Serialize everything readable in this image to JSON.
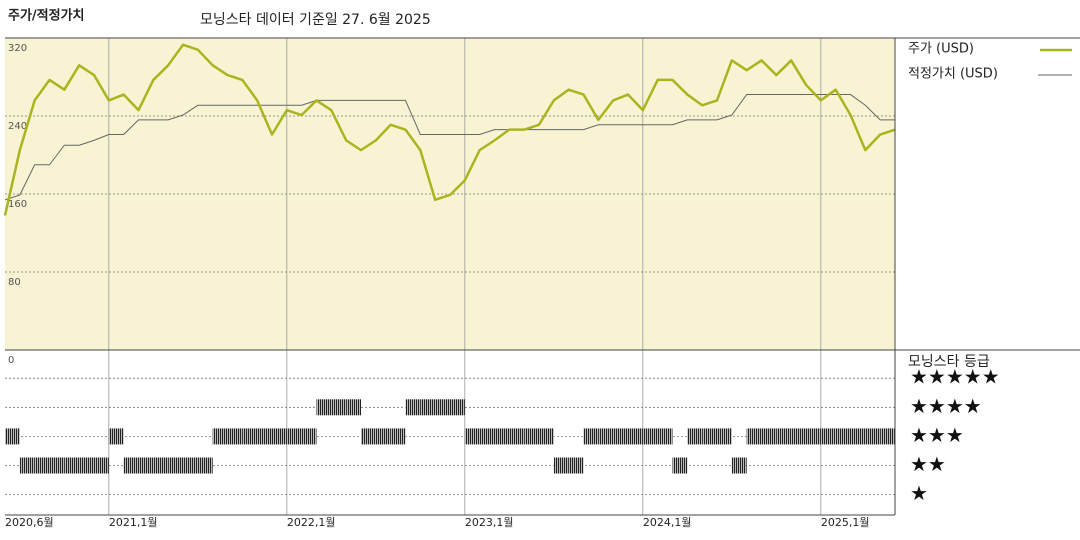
{
  "chart_data": {
    "type": "line",
    "title": "주가/적정가치",
    "subtitle": "모닝스타 데이터 기준일 27. 6월 2025",
    "x": [
      "2020-06",
      "2020-07",
      "2020-08",
      "2020-09",
      "2020-10",
      "2020-11",
      "2020-12",
      "2021-01",
      "2021-02",
      "2021-03",
      "2021-04",
      "2021-05",
      "2021-06",
      "2021-07",
      "2021-08",
      "2021-09",
      "2021-10",
      "2021-11",
      "2021-12",
      "2022-01",
      "2022-02",
      "2022-03",
      "2022-04",
      "2022-05",
      "2022-06",
      "2022-07",
      "2022-08",
      "2022-09",
      "2022-10",
      "2022-11",
      "2022-12",
      "2023-01",
      "2023-02",
      "2023-03",
      "2023-04",
      "2023-05",
      "2023-06",
      "2023-07",
      "2023-08",
      "2023-09",
      "2023-10",
      "2023-11",
      "2023-12",
      "2024-01",
      "2024-02",
      "2024-03",
      "2024-04",
      "2024-05",
      "2024-06",
      "2024-07",
      "2024-08",
      "2024-09",
      "2024-10",
      "2024-11",
      "2024-12",
      "2025-01",
      "2025-02",
      "2025-03",
      "2025-04",
      "2025-05",
      "2025-06"
    ],
    "series": [
      {
        "name": "주가 (USD)",
        "color": "#a9b51f",
        "width": 2.5,
        "values": [
          138,
          205,
          256,
          277,
          267,
          292,
          282,
          256,
          262,
          246,
          277,
          292,
          313,
          308,
          292,
          282,
          277,
          256,
          221,
          246,
          241,
          256,
          246,
          215,
          205,
          215,
          231,
          226,
          205,
          154,
          159,
          174,
          205,
          215,
          226,
          226,
          231,
          256,
          267,
          262,
          236,
          256,
          262,
          246,
          277,
          277,
          262,
          251,
          256,
          297,
          287,
          297,
          282,
          297,
          272,
          256,
          267,
          241,
          205,
          221,
          226
        ]
      },
      {
        "name": "적정가치 (USD)",
        "color": "#666666",
        "width": 1,
        "values": [
          154,
          159,
          190,
          190,
          210,
          210,
          215,
          221,
          221,
          236,
          236,
          236,
          241,
          251,
          251,
          251,
          251,
          251,
          251,
          251,
          251,
          256,
          256,
          256,
          256,
          256,
          256,
          256,
          221,
          221,
          221,
          221,
          221,
          226,
          226,
          226,
          226,
          226,
          226,
          226,
          231,
          231,
          231,
          231,
          231,
          231,
          236,
          236,
          236,
          241,
          262,
          262,
          262,
          262,
          262,
          262,
          262,
          262,
          251,
          236,
          236
        ]
      }
    ],
    "ratings": [
      3,
      2,
      2,
      2,
      2,
      2,
      2,
      3,
      2,
      2,
      2,
      2,
      2,
      2,
      3,
      3,
      3,
      3,
      3,
      3,
      3,
      4,
      4,
      4,
      3,
      3,
      3,
      4,
      4,
      4,
      4,
      3,
      3,
      3,
      3,
      3,
      3,
      2,
      2,
      3,
      3,
      3,
      3,
      3,
      3,
      2,
      3,
      3,
      3,
      2,
      3,
      3,
      3,
      3,
      3,
      3,
      3,
      3,
      3,
      3,
      3
    ],
    "rating_legend": {
      "title": "모닝스타 등급",
      "labels": [
        "★★★★★",
        "★★★★",
        "★★★",
        "★★",
        "★"
      ],
      "levels": [
        5,
        4,
        3,
        2,
        1
      ]
    },
    "xlim": [
      "2020-06",
      "2025-06"
    ],
    "xticks": [
      {
        "value": "2020-06",
        "label": "2020,6월"
      },
      {
        "value": "2021-01",
        "label": "2021,1월"
      },
      {
        "value": "2022-01",
        "label": "2022,1월"
      },
      {
        "value": "2023-01",
        "label": "2023,1월"
      },
      {
        "value": "2024-01",
        "label": "2024,1월"
      },
      {
        "value": "2025-01",
        "label": "2025,1월"
      }
    ],
    "ylim": [
      0,
      320
    ],
    "yticks": [
      320,
      240,
      160,
      80,
      0
    ],
    "grid": true
  }
}
